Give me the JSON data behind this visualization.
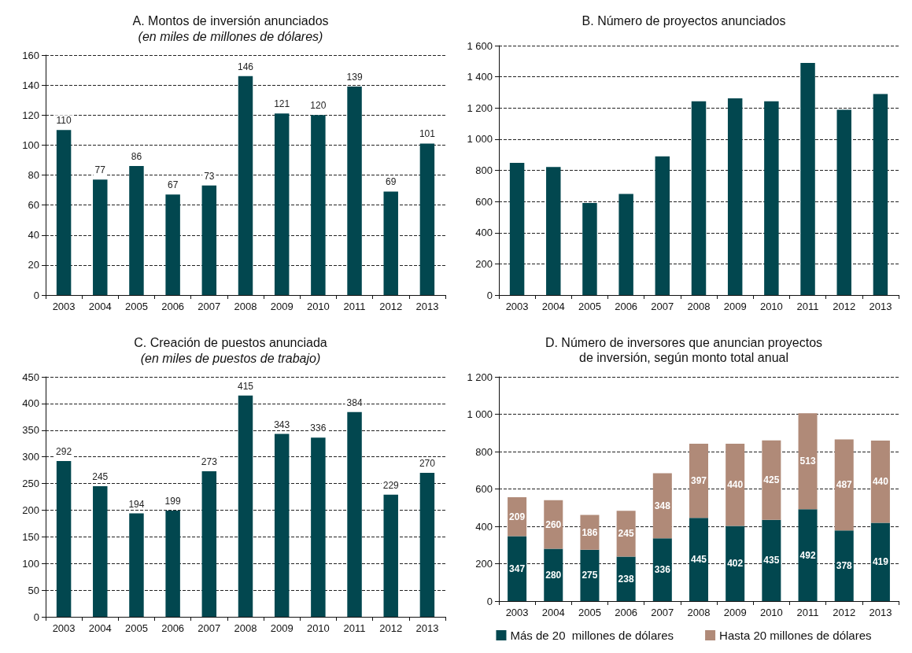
{
  "chart_data": [
    {
      "type": "bar",
      "title": "A. Montos de inversión anunciados",
      "subtitle": "(en miles de millones de dólares)",
      "categories": [
        "2003",
        "2004",
        "2005",
        "2006",
        "2007",
        "2008",
        "2009",
        "2010",
        "2011",
        "2012",
        "2013"
      ],
      "series": [
        {
          "color": "#02474f",
          "values": [
            110,
            77,
            86,
            67,
            73,
            146,
            121,
            120,
            139,
            69,
            101
          ]
        }
      ],
      "ylim": [
        0,
        160
      ],
      "yticks": [
        0,
        20,
        40,
        60,
        80,
        100,
        120,
        140,
        160
      ],
      "grid": "y",
      "data_labels": true
    },
    {
      "type": "bar",
      "title": "B. Número de proyectos anunciados",
      "categories": [
        "2003",
        "2004",
        "2005",
        "2006",
        "2007",
        "2008",
        "2009",
        "2010",
        "2011",
        "2012",
        "2013"
      ],
      "series": [
        {
          "color": "#02474f",
          "values": [
            848,
            821,
            590,
            649,
            890,
            1243,
            1262,
            1243,
            1489,
            1189,
            1289
          ]
        }
      ],
      "ylim": [
        0,
        1600
      ],
      "yticks": [
        0,
        200,
        400,
        600,
        800,
        {
          "value": 1000,
          "label": "1 000"
        },
        {
          "value": 1200,
          "label": "1 200"
        },
        {
          "value": 1400,
          "label": "1 400"
        },
        {
          "value": 1600,
          "label": "1 600"
        }
      ],
      "grid": "y"
    },
    {
      "type": "bar",
      "title": "C. Creación de puestos anunciada",
      "subtitle": "(en miles de puestos de trabajo)",
      "categories": [
        "2003",
        "2004",
        "2005",
        "2006",
        "2007",
        "2008",
        "2009",
        "2010",
        "2011",
        "2012",
        "2013"
      ],
      "series": [
        {
          "color": "#02474f",
          "values": [
            292,
            245,
            194,
            199,
            273,
            415,
            343,
            336,
            384,
            229,
            270
          ]
        }
      ],
      "ylim": [
        0,
        450
      ],
      "yticks": [
        0,
        50,
        100,
        150,
        200,
        250,
        300,
        350,
        400,
        450
      ],
      "grid": "y",
      "data_labels": true
    },
    {
      "type": "bar",
      "title": "D. Número de inversores que anuncian proyectos\nde inversión, según monto total anual",
      "categories": [
        "2003",
        "2004",
        "2005",
        "2006",
        "2007",
        "2008",
        "2009",
        "2010",
        "2011",
        "2012",
        "2013"
      ],
      "stacked": true,
      "series": [
        {
          "name": "Más de 20  millones de dólares",
          "color": "#02474f",
          "values": [
            347,
            280,
            275,
            238,
            336,
            445,
            402,
            435,
            492,
            378,
            419
          ]
        },
        {
          "name": "Hasta 20 millones de dólares",
          "color": "#b08a78",
          "values": [
            209,
            260,
            186,
            245,
            348,
            397,
            440,
            425,
            513,
            487,
            440
          ]
        }
      ],
      "ylim": [
        0,
        1200
      ],
      "yticks": [
        0,
        200,
        400,
        600,
        800,
        {
          "value": 1000,
          "label": "1 000"
        },
        {
          "value": 1200,
          "label": "1 200"
        }
      ],
      "grid": "y",
      "data_labels": true,
      "legend": "bottom"
    }
  ]
}
